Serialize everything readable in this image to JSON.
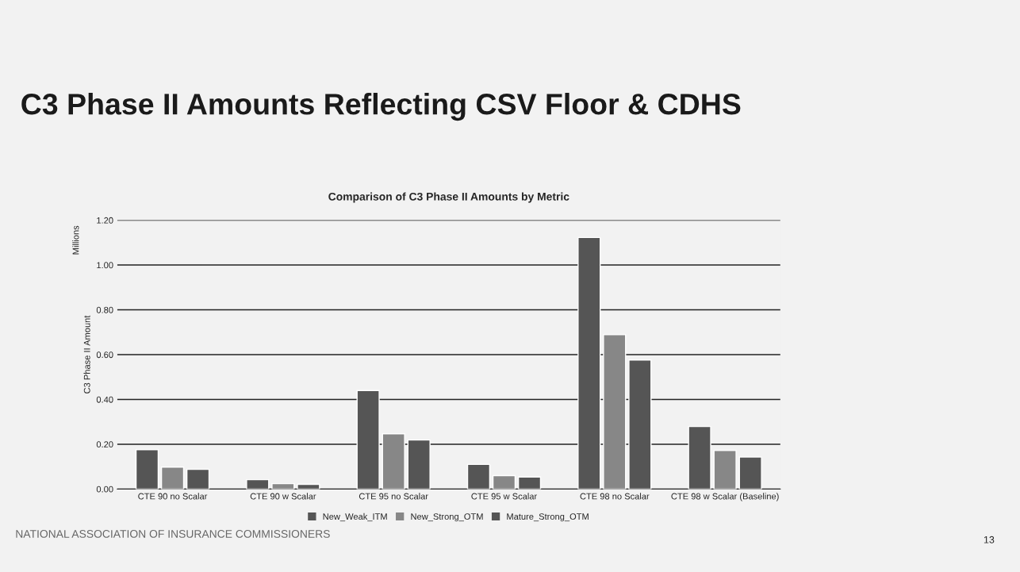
{
  "chart_data": {
    "type": "bar",
    "title": "C3 Phase II Amounts Reflecting CSV Floor & CDHS",
    "subtitle": "Comparison of C3 Phase II Amounts by Metric",
    "ylabel": "C3 Phase II Amount",
    "categories": [
      "CTE 90 no Scalar",
      "CTE 90 w Scalar",
      "CTE 95 no Scalar",
      "CTE 95 w Scalar",
      "CTE 98 no Scalar",
      "CTE 98 w Scalar (Baseline)"
    ],
    "series": [
      {
        "name": "New_Weak_ITM",
        "color": "#555555",
        "values": [
          0.176,
          0.042,
          0.44,
          0.11,
          1.123,
          0.279
        ]
      },
      {
        "name": "New_Strong_OTM",
        "color": "#878787",
        "values": [
          0.098,
          0.024,
          0.247,
          0.06,
          0.689,
          0.172
        ]
      },
      {
        "name": "Mature_Strong_OTM",
        "color": "#555555",
        "values": [
          0.088,
          0.021,
          0.219,
          0.054,
          0.576,
          0.143
        ]
      }
    ],
    "ylim": [
      0,
      1.2
    ],
    "yticks": [
      {
        "value": 0,
        "label": "0.00"
      },
      {
        "value": 0.2,
        "label": "0.20"
      },
      {
        "value": 0.4,
        "label": "0.40"
      },
      {
        "value": 0.6,
        "label": "0.60"
      },
      {
        "value": 0.8,
        "label": "0.80"
      },
      {
        "value": 1.0,
        "label": "1.00"
      },
      {
        "value": 1.2,
        "label": "1.20"
      }
    ],
    "grid": "y",
    "legend": "bottom",
    "annotations": [
      "Millions",
      "NATIONAL ASSOCIATION OF INSURANCE COMMISSIONERS",
      "13"
    ]
  }
}
